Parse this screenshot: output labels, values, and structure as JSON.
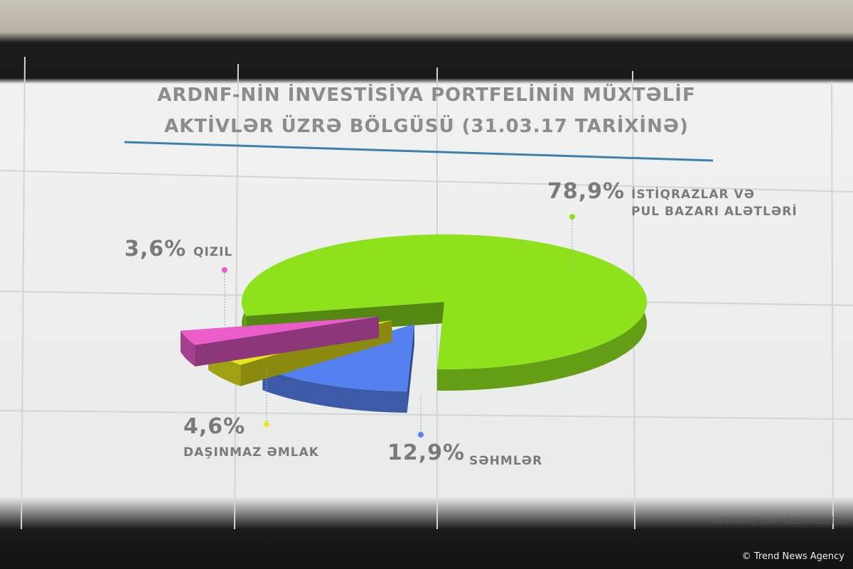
{
  "chart_data": {
    "type": "pie",
    "title": "ARDNF-NİN İNVESTİSİYA PORTFELİNİN MÜXTƏLİF\nAKTİVLƏR ÜZRƏ BÖLGÜSÜ (31.03.17 TARİXİNƏ)",
    "categories": [
      "İSTİQRAZLAR VƏ\nPUL BAZARI ALƏTLƏRİ",
      "SƏHMLƏR",
      "DAŞINMAZ ƏMLAK",
      "QIZIL"
    ],
    "values": [
      78.9,
      12.9,
      4.6,
      3.6
    ],
    "value_labels": [
      "78,9%",
      "12,9%",
      "4,6%",
      "3,6%"
    ],
    "colors": [
      "#8ee21c",
      "#5580f0",
      "#e6e61c",
      "#ea5cc9"
    ]
  },
  "footer": {
    "logo_text": "AZƏRBAYCAN RESPUBLİKA",
    "credit": "© Trend News Agency"
  }
}
